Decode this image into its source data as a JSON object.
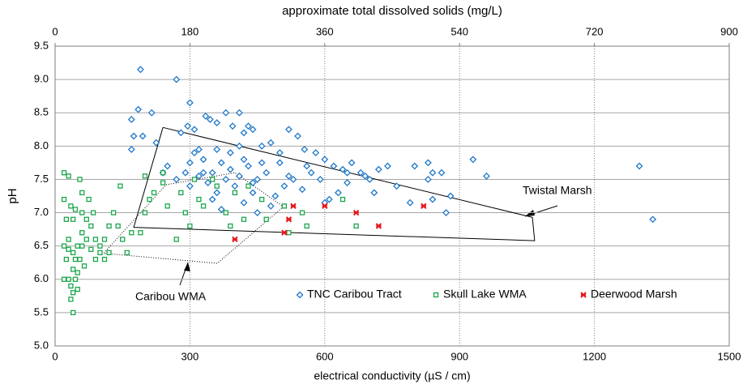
{
  "chart_data": {
    "type": "scatter",
    "title": "approximate total dissolved solids (mg/L)",
    "x_label": "electrical conductivity (µS / cm)",
    "y_label": "pH",
    "xlim": [
      0,
      1500
    ],
    "xticks": [
      0,
      300,
      600,
      900,
      1200,
      1500
    ],
    "x2lim": [
      0,
      900
    ],
    "x2ticks": [
      0,
      180,
      360,
      540,
      720,
      900
    ],
    "ylim": [
      5.0,
      9.5
    ],
    "yticks": [
      {
        "value": 5.0,
        "label": "5.0"
      },
      {
        "value": 5.5,
        "label": "5.5"
      },
      {
        "value": 6.0,
        "label": "6.0"
      },
      {
        "value": 6.5,
        "label": "6.5"
      },
      {
        "value": 7.0,
        "label": "7.0"
      },
      {
        "value": 7.5,
        "label": "7.5"
      },
      {
        "value": 8.0,
        "label": "8.0"
      },
      {
        "value": 8.5,
        "label": "8.5"
      },
      {
        "value": 9.0,
        "label": "9.0"
      },
      {
        "value": 9.5,
        "label": "9.5"
      }
    ],
    "grid": true,
    "legend": "lower right",
    "series": [
      {
        "name": "TNC Caribou Tract",
        "color": "#1f77c9",
        "marker": "diamond",
        "x": [
          190,
          270,
          170,
          185,
          215,
          175,
          195,
          170,
          225,
          250,
          240,
          280,
          300,
          310,
          295,
          320,
          335,
          345,
          360,
          380,
          395,
          410,
          420,
          430,
          440,
          460,
          480,
          500,
          520,
          540,
          555,
          580,
          600,
          620,
          640,
          660,
          680,
          700,
          740,
          760,
          800,
          830,
          840,
          860,
          880,
          870,
          960,
          930,
          1300,
          1330,
          840,
          830,
          790,
          720,
          650,
          630,
          610,
          590,
          570,
          550,
          530,
          510,
          490,
          470,
          450,
          440,
          430,
          420,
          410,
          400,
          390,
          380,
          370,
          360,
          350,
          340,
          330,
          320,
          310,
          300,
          290,
          350,
          370,
          420,
          450,
          480,
          520,
          560,
          600,
          650,
          690,
          710,
          460,
          390,
          410,
          500,
          440,
          360,
          330,
          300,
          270
        ],
        "values": [
          9.15,
          9.0,
          8.4,
          8.55,
          8.5,
          8.15,
          8.15,
          7.95,
          8.05,
          7.7,
          7.6,
          8.2,
          8.65,
          8.25,
          8.3,
          7.95,
          8.45,
          8.4,
          8.35,
          8.5,
          8.3,
          8.5,
          8.2,
          8.3,
          8.25,
          8.0,
          8.05,
          7.9,
          8.25,
          8.15,
          7.95,
          7.9,
          7.8,
          7.7,
          7.65,
          7.75,
          7.6,
          7.5,
          7.7,
          7.4,
          7.7,
          7.75,
          7.6,
          7.6,
          7.25,
          7.0,
          7.55,
          7.8,
          7.7,
          6.9,
          7.2,
          7.5,
          7.15,
          7.65,
          7.45,
          7.3,
          7.2,
          7.5,
          7.6,
          7.35,
          7.5,
          7.4,
          7.25,
          7.6,
          7.5,
          7.3,
          7.7,
          7.8,
          7.55,
          7.4,
          7.65,
          7.5,
          7.75,
          7.3,
          7.6,
          7.45,
          7.8,
          7.55,
          7.9,
          7.75,
          7.6,
          7.2,
          7.05,
          7.15,
          7.0,
          7.1,
          7.55,
          7.7,
          7.15,
          7.6,
          7.55,
          7.3,
          7.75,
          7.9,
          8.0,
          7.75,
          7.45,
          7.95,
          7.6,
          7.4,
          7.5
        ]
      },
      {
        "name": "Skull Lake WMA",
        "color": "#1aa64a",
        "marker": "square",
        "x": [
          20,
          30,
          20,
          35,
          45,
          25,
          40,
          55,
          60,
          30,
          20,
          30,
          40,
          50,
          60,
          70,
          45,
          55,
          40,
          50,
          30,
          45,
          35,
          40,
          50,
          35,
          40,
          20,
          25,
          60,
          70,
          80,
          90,
          100,
          110,
          120,
          100,
          80,
          90,
          110,
          120,
          130,
          140,
          150,
          160,
          145,
          170,
          190,
          200,
          210,
          220,
          240,
          250,
          270,
          280,
          290,
          300,
          310,
          320,
          330,
          350,
          360,
          380,
          390,
          400,
          420,
          430,
          460,
          470,
          510,
          520,
          550,
          560,
          640,
          670,
          240,
          200,
          60,
          75,
          85,
          65
        ],
        "values": [
          7.6,
          7.55,
          7.2,
          7.1,
          7.05,
          6.9,
          6.9,
          7.5,
          7.3,
          6.6,
          6.5,
          6.45,
          6.4,
          6.5,
          6.5,
          6.6,
          6.3,
          6.3,
          6.15,
          6.1,
          6.0,
          6.0,
          5.9,
          5.8,
          5.85,
          5.7,
          5.5,
          6.0,
          6.3,
          6.7,
          6.9,
          6.8,
          6.6,
          6.5,
          6.3,
          6.4,
          6.4,
          6.45,
          6.3,
          6.6,
          6.8,
          7.0,
          6.8,
          6.6,
          6.4,
          7.4,
          6.7,
          6.7,
          7.0,
          7.2,
          7.3,
          7.45,
          7.1,
          6.6,
          7.3,
          7.0,
          6.8,
          7.5,
          7.2,
          7.1,
          7.5,
          7.4,
          7.0,
          6.8,
          7.3,
          6.9,
          7.4,
          7.2,
          6.9,
          7.1,
          6.7,
          7.0,
          6.8,
          7.2,
          6.8,
          7.6,
          7.55,
          7.0,
          7.2,
          7.0,
          6.2
        ]
      },
      {
        "name": "Deerwood Marsh",
        "color": "#e8171c",
        "marker": "x",
        "x": [
          400,
          510,
          520,
          530,
          600,
          670,
          720,
          820
        ],
        "values": [
          6.6,
          6.7,
          6.9,
          7.1,
          7.1,
          7.0,
          6.8,
          7.1
        ]
      }
    ],
    "regions": [
      {
        "name": "Twistal  Marsh",
        "style": "solid",
        "x": [
          240,
          1062,
          1067,
          175,
          240
        ],
        "values": [
          8.28,
          6.93,
          6.58,
          6.78,
          8.28
        ]
      },
      {
        "name": "Caribou WMA",
        "style": "dotted",
        "x": [
          247,
          400,
          508,
          361,
          108,
          247
        ],
        "values": [
          7.42,
          7.6,
          7.09,
          6.24,
          6.39,
          7.42
        ]
      }
    ]
  }
}
